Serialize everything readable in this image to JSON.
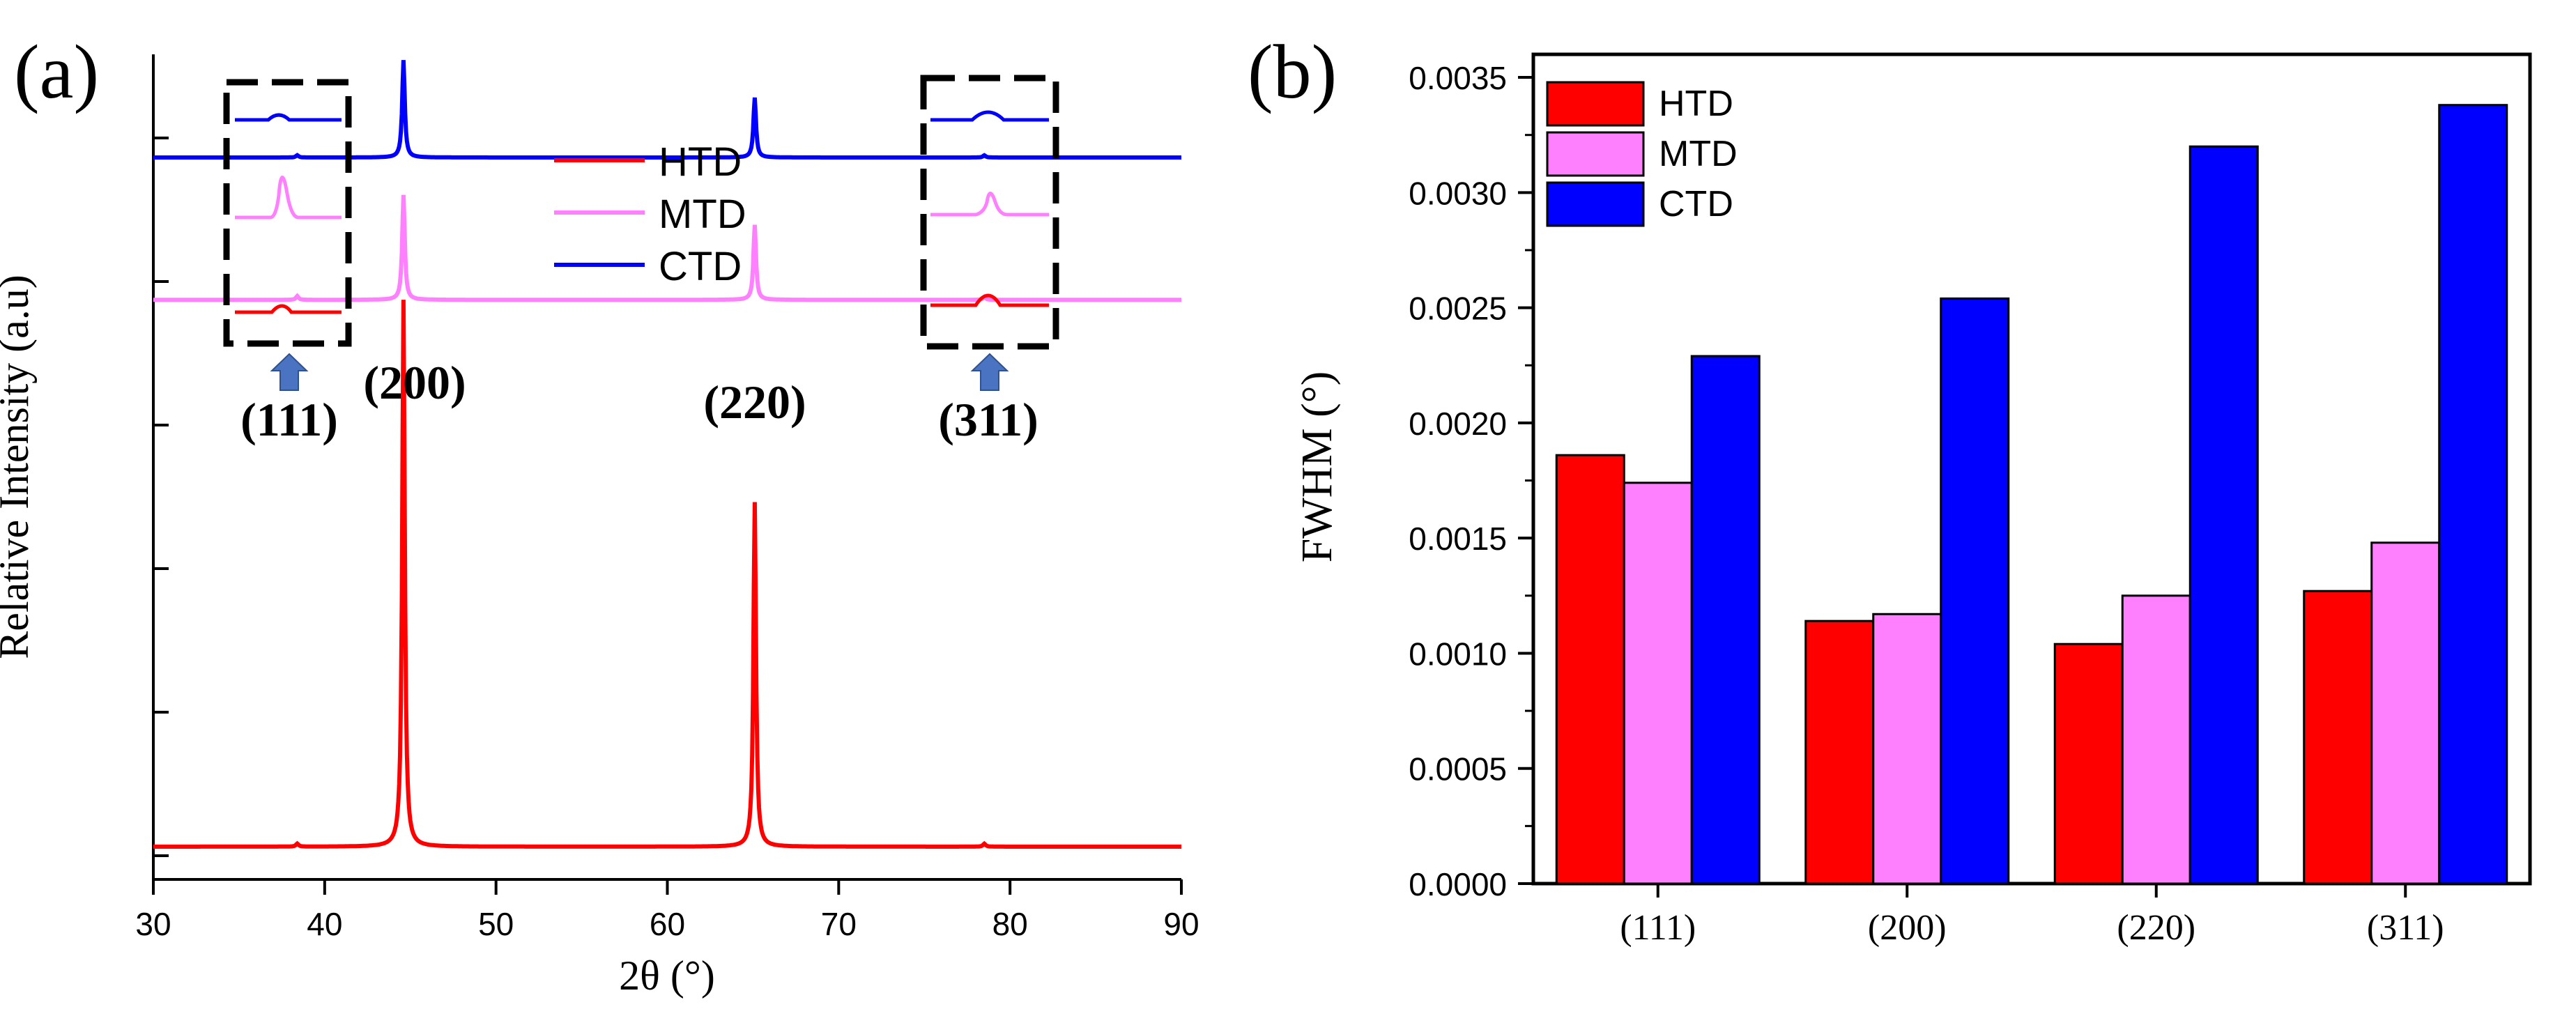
{
  "colors": {
    "HTD": "#ff0000",
    "MTD": "#ff80ff",
    "CTD": "#0000ff"
  },
  "chart_data": [
    {
      "panel": "(a)",
      "type": "line",
      "title": "",
      "xlabel": "2θ (°)",
      "ylabel": "Relative Intensity (a.u)",
      "xlim": [
        30,
        90
      ],
      "x_ticks": [
        "30",
        "40",
        "50",
        "60",
        "70",
        "80",
        "90"
      ],
      "ylim": [
        0,
        100
      ],
      "legend": [
        "HTD",
        "MTD",
        "CTD"
      ],
      "legend_position": "top-center",
      "peak_labels": [
        "(111)",
        "(200)",
        "(220)",
        "(311)"
      ],
      "series": [
        {
          "name": "HTD",
          "baseline": 0,
          "peaks": [
            {
              "x": 38.4,
              "h": 0.4
            },
            {
              "x": 44.6,
              "h": 73
            },
            {
              "x": 65.1,
              "h": 46
            },
            {
              "x": 78.5,
              "h": 0.4
            }
          ]
        },
        {
          "name": "MTD",
          "baseline": 73,
          "peaks": [
            {
              "x": 38.4,
              "h": 0.5
            },
            {
              "x": 44.6,
              "h": 14
            },
            {
              "x": 65.1,
              "h": 10
            },
            {
              "x": 78.5,
              "h": 0.4
            }
          ]
        },
        {
          "name": "CTD",
          "baseline": 92,
          "peaks": [
            {
              "x": 38.4,
              "h": 0.3
            },
            {
              "x": 44.6,
              "h": 13
            },
            {
              "x": 65.1,
              "h": 8
            },
            {
              "x": 78.5,
              "h": 0.3
            }
          ]
        }
      ]
    },
    {
      "panel": "(b)",
      "type": "bar",
      "title": "",
      "xlabel": "",
      "ylabel": "FWHM (°)",
      "categories": [
        "(111)",
        "(200)",
        "(220)",
        "(311)"
      ],
      "ylim": [
        0,
        0.0036
      ],
      "y_ticks": [
        "0.0000",
        "0.0005",
        "0.0010",
        "0.0015",
        "0.0020",
        "0.0025",
        "0.0030",
        "0.0035"
      ],
      "legend_position": "top-left",
      "series": [
        {
          "name": "HTD",
          "values": [
            0.00186,
            0.00114,
            0.00104,
            0.00127
          ]
        },
        {
          "name": "MTD",
          "values": [
            0.00174,
            0.00117,
            0.00125,
            0.00148
          ]
        },
        {
          "name": "CTD",
          "values": [
            0.00229,
            0.00254,
            0.0032,
            0.00338
          ]
        }
      ]
    }
  ]
}
